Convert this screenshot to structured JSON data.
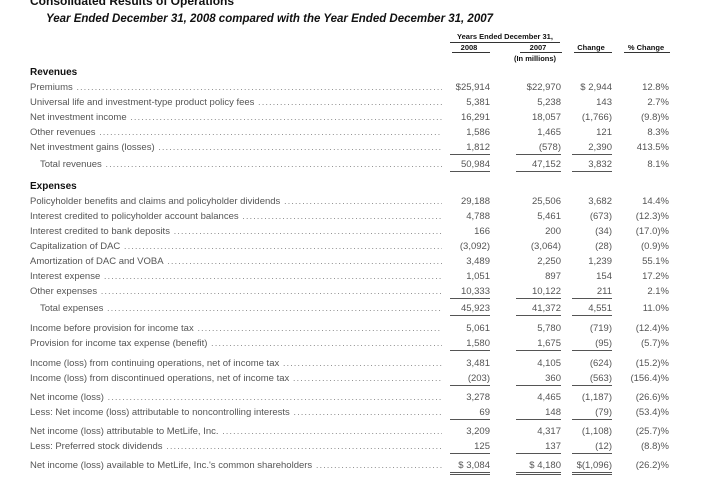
{
  "section_title": "Consolidated Results of Operations",
  "subtitle": "Year Ended December 31, 2008 compared with the Year Ended December 31, 2007",
  "header": {
    "years_ended": "Years Ended December 31,",
    "col_2008": "2008",
    "col_2007": "2007",
    "in_millions": "(In millions)",
    "change": "Change",
    "pct_change": "% Change"
  },
  "rows": [
    {
      "label": "Revenues",
      "type": "section"
    },
    {
      "label": "Premiums",
      "v2008": "$25,914",
      "v2007": "$22,970",
      "change": "$ 2,944",
      "pct": "12.8%"
    },
    {
      "label": "Universal life and investment-type product policy fees",
      "v2008": "5,381",
      "v2007": "5,238",
      "change": "143",
      "pct": "2.7%"
    },
    {
      "label": "Net investment income",
      "v2008": "16,291",
      "v2007": "18,057",
      "change": "(1,766)",
      "pct": "(9.8)%"
    },
    {
      "label": "Other revenues",
      "v2008": "1,586",
      "v2007": "1,465",
      "change": "121",
      "pct": "8.3%"
    },
    {
      "label": "Net investment gains (losses)",
      "v2008": "1,812",
      "v2007": "(578)",
      "change": "2,390",
      "pct": "413.5%"
    },
    {
      "label": "Total revenues",
      "type": "total",
      "v2008": "50,984",
      "v2007": "47,152",
      "change": "3,832",
      "pct": "8.1%"
    },
    {
      "label": "Expenses",
      "type": "section"
    },
    {
      "label": "Policyholder benefits and claims and policyholder dividends",
      "v2008": "29,188",
      "v2007": "25,506",
      "change": "3,682",
      "pct": "14.4%"
    },
    {
      "label": "Interest credited to policyholder account balances",
      "v2008": "4,788",
      "v2007": "5,461",
      "change": "(673)",
      "pct": "(12.3)%"
    },
    {
      "label": "Interest credited to bank deposits",
      "v2008": "166",
      "v2007": "200",
      "change": "(34)",
      "pct": "(17.0)%"
    },
    {
      "label": "Capitalization of DAC",
      "v2008": "(3,092)",
      "v2007": "(3,064)",
      "change": "(28)",
      "pct": "(0.9)%"
    },
    {
      "label": "Amortization of DAC and VOBA",
      "v2008": "3,489",
      "v2007": "2,250",
      "change": "1,239",
      "pct": "55.1%"
    },
    {
      "label": "Interest expense",
      "v2008": "1,051",
      "v2007": "897",
      "change": "154",
      "pct": "17.2%"
    },
    {
      "label": "Other expenses",
      "v2008": "10,333",
      "v2007": "10,122",
      "change": "211",
      "pct": "2.1%"
    },
    {
      "label": "Total expenses",
      "type": "total",
      "v2008": "45,923",
      "v2007": "41,372",
      "change": "4,551",
      "pct": "11.0%"
    },
    {
      "label": "Income before provision for income tax",
      "v2008": "5,061",
      "v2007": "5,780",
      "change": "(719)",
      "pct": "(12.4)%"
    },
    {
      "label": "Provision for income tax expense (benefit)",
      "v2008": "1,580",
      "v2007": "1,675",
      "change": "(95)",
      "pct": "(5.7)%"
    },
    {
      "label": "Income (loss) from continuing operations, net of income tax",
      "v2008": "3,481",
      "v2007": "4,105",
      "change": "(624)",
      "pct": "(15.2)%"
    },
    {
      "label": "Income (loss) from discontinued operations, net of income tax",
      "v2008": "(203)",
      "v2007": "360",
      "change": "(563)",
      "pct": "(156.4)%"
    },
    {
      "label": "Net income (loss)",
      "v2008": "3,278",
      "v2007": "4,465",
      "change": "(1,187)",
      "pct": "(26.6)%"
    },
    {
      "label": "Less: Net income (loss) attributable to noncontrolling interests",
      "v2008": "69",
      "v2007": "148",
      "change": "(79)",
      "pct": "(53.4)%"
    },
    {
      "label": "Net income (loss) attributable to MetLife, Inc.",
      "v2008": "3,209",
      "v2007": "4,317",
      "change": "(1,108)",
      "pct": "(25.7)%"
    },
    {
      "label": "Less: Preferred stock dividends",
      "v2008": "125",
      "v2007": "137",
      "change": "(12)",
      "pct": "(8.8)%"
    },
    {
      "label": "Net income (loss) available to MetLife, Inc.'s common shareholders",
      "v2008": "$ 3,084",
      "v2007": "$ 4,180",
      "change": "$(1,096)",
      "pct": "(26.2)%"
    }
  ]
}
